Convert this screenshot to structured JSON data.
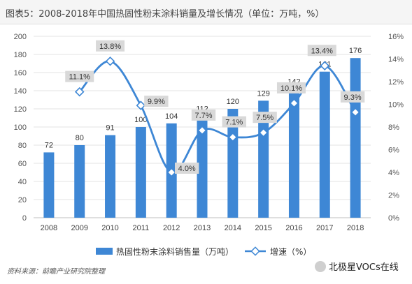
{
  "title": "图表5：2008-2018年中国热固性粉末涂料销量及增长情况（单位：万吨，%）",
  "source": "资料来源：前瞻产业研究院整理",
  "watermark": "北极星VOCs在线",
  "colors": {
    "bar": "#3e87d5",
    "line": "#3e87d5",
    "label_bg": "#d9d9d9",
    "grid": "#e3e3e3"
  },
  "chart_data": {
    "type": "bar",
    "categories": [
      "2008",
      "2009",
      "2010",
      "2011",
      "2012",
      "2013",
      "2014",
      "2015",
      "2016",
      "2017",
      "2018"
    ],
    "series": [
      {
        "name": "热固性粉末涂料销售量（万吨）",
        "type": "bar",
        "axis": "left",
        "values": [
          72,
          80,
          91,
          100,
          104,
          112,
          120,
          129,
          142,
          161,
          176
        ]
      },
      {
        "name": "增速（%）",
        "type": "line",
        "axis": "right",
        "values": [
          null,
          11.1,
          13.8,
          9.9,
          4.0,
          7.7,
          7.1,
          7.5,
          10.1,
          13.4,
          9.3
        ],
        "labels": [
          "",
          "11.1%",
          "13.8%",
          "9.9%",
          "4.0%",
          "7.7%",
          "7.1%",
          "7.5%",
          "10.1%",
          "13.4%",
          "9.3%"
        ]
      }
    ],
    "y_left": {
      "min": 0,
      "max": 200,
      "ticks": [
        "0",
        "20",
        "40",
        "60",
        "80",
        "100",
        "120",
        "140",
        "160",
        "180",
        "200"
      ]
    },
    "y_right": {
      "min": 0,
      "max": 16,
      "ticks": [
        "0%",
        "2%",
        "4%",
        "6%",
        "8%",
        "10%",
        "12%",
        "14%",
        "16%"
      ]
    },
    "grid": true,
    "legend_position": "bottom"
  }
}
